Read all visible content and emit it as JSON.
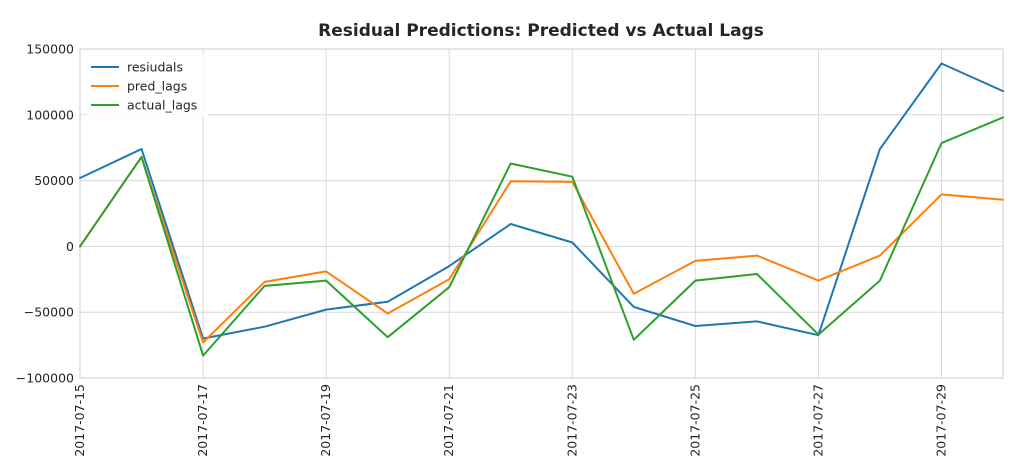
{
  "chart_data": {
    "type": "line",
    "title": "Residual Predictions: Predicted vs Actual Lags",
    "xlabel": "",
    "ylabel": "",
    "x": [
      "2017-07-15",
      "2017-07-16",
      "2017-07-17",
      "2017-07-18",
      "2017-07-19",
      "2017-07-20",
      "2017-07-21",
      "2017-07-22",
      "2017-07-23",
      "2017-07-24",
      "2017-07-25",
      "2017-07-26",
      "2017-07-27",
      "2017-07-28",
      "2017-07-29",
      "2017-07-30"
    ],
    "x_tick_labels": [
      "2017-07-15",
      "2017-07-17",
      "2017-07-19",
      "2017-07-21",
      "2017-07-23",
      "2017-07-25",
      "2017-07-27",
      "2017-07-29"
    ],
    "y_tick_values": [
      -100000,
      -50000,
      0,
      50000,
      100000,
      150000
    ],
    "y_tick_labels": [
      "−100000",
      "−50000",
      "0",
      "50000",
      "100000",
      "150000"
    ],
    "ylim": [
      -100000,
      150000
    ],
    "grid": true,
    "legend_position": "top-left",
    "series": [
      {
        "name": "resiudals",
        "color": "#1f77b4",
        "values": [
          52000,
          74000,
          -70000,
          -61000,
          -48000,
          -42000,
          -15000,
          17000,
          3000,
          -46000,
          -60500,
          -57000,
          -67500,
          74000,
          139000,
          118000
        ]
      },
      {
        "name": "pred_lags",
        "color": "#ff7f0e",
        "values": [
          0,
          68000,
          -73000,
          -27000,
          -19000,
          -51000,
          -25000,
          49500,
          49000,
          -36000,
          -11000,
          -7000,
          -26000,
          -7000,
          39500,
          35500
        ]
      },
      {
        "name": "actual_lags",
        "color": "#2ca02c",
        "values": [
          0,
          68000,
          -83000,
          -30000,
          -26000,
          -69000,
          -31000,
          63000,
          53000,
          -71000,
          -26000,
          -21000,
          -67000,
          -26000,
          78500,
          98000
        ]
      }
    ]
  }
}
